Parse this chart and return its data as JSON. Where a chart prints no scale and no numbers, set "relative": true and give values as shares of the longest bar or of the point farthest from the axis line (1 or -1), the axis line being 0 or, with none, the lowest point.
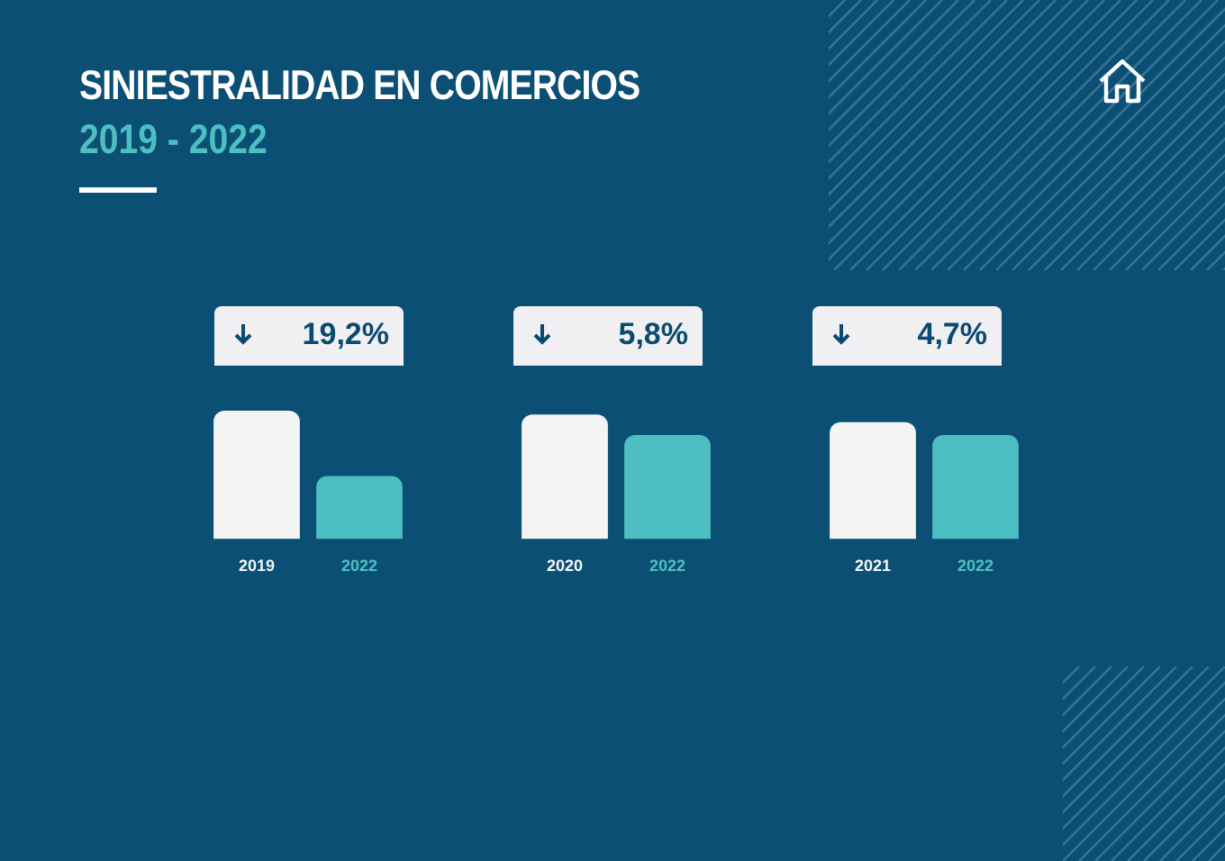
{
  "chart_data": {
    "type": "bar",
    "title": "SINIESTRALIDAD EN COMERCIOS",
    "subtitle": "2019 - 2022",
    "categories": [
      "2019",
      "2022",
      null,
      "2020",
      "2022",
      null,
      "2021",
      "2022"
    ],
    "values": [
      1,
      0.49,
      null,
      0.97,
      0.81,
      null,
      0.91,
      0.81
    ],
    "colors": [
      "#f4f4f4",
      "#4dbfc1",
      null,
      "#f4f4f4",
      "#4dbfc1",
      null,
      "#f4f4f4",
      "#4dbfc1"
    ],
    "relative": true,
    "annotations": [
      "19,2%",
      "5,8%",
      "4,7%"
    ]
  }
}
